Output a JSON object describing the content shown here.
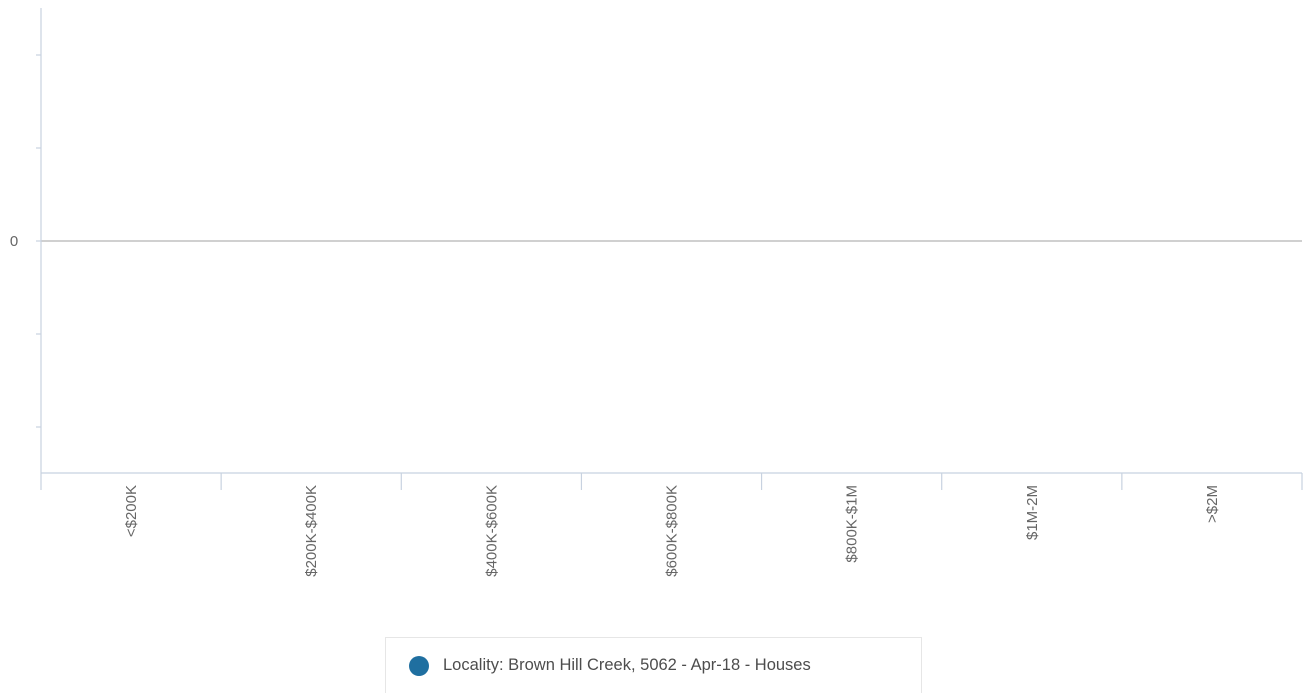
{
  "chart_data": {
    "type": "bar",
    "categories": [
      "<$200K",
      "$200K-$400K",
      "$400K-$600K",
      "$600K-$800K",
      "$800K-$1M",
      "$1M-2M",
      ">$2M"
    ],
    "series": [
      {
        "name": "Locality: Brown Hill Creek, 5062 - Apr-18 - Houses",
        "values": [
          null,
          null,
          null,
          null,
          null,
          null,
          null
        ]
      }
    ],
    "y_tick_labels": [
      "0"
    ],
    "grid": false,
    "legend_position": "bottom-center"
  },
  "colors": {
    "series": "#1f6fa0",
    "axis": "#c8d2e0",
    "zero_line": "#b5b5b5",
    "text": "#666666"
  }
}
